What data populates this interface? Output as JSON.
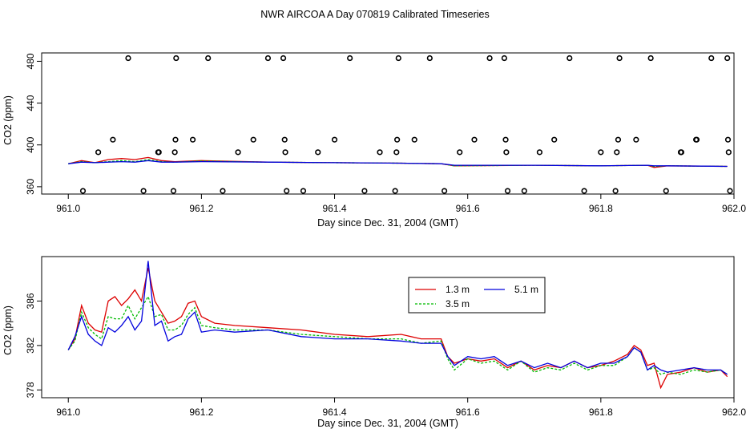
{
  "page": {
    "title": "NWR AIRCOA A  Day 070819  Calibrated Timeseries"
  },
  "colors": {
    "red": "#dd0000",
    "green": "#00bb00",
    "blue": "#0000dd",
    "axis": "#000000",
    "marker": "#000000"
  },
  "chart_data": [
    {
      "type": "scatter",
      "title": "",
      "xlabel": "Day since Dec. 31, 2004 (GMT)",
      "ylabel": "CO2 (ppm)",
      "xlim": [
        960.96,
        962.0
      ],
      "ylim": [
        353,
        488
      ],
      "x_ticks": [
        961.0,
        961.2,
        961.4,
        961.6,
        961.8,
        962.0
      ],
      "x_tick_labels": [
        "961.0",
        "961.2",
        "961.4",
        "961.6",
        "961.8",
        "962.0"
      ],
      "y_ticks": [
        360,
        400,
        440,
        480
      ],
      "y_tick_labels": [
        "360",
        "400",
        "440",
        "480"
      ],
      "markers": [
        {
          "x": 961.022,
          "y": 356
        },
        {
          "x": 961.045,
          "y": 393
        },
        {
          "x": 961.067,
          "y": 405
        },
        {
          "x": 961.09,
          "y": 483
        },
        {
          "x": 961.113,
          "y": 356
        },
        {
          "x": 961.135,
          "y": 393
        },
        {
          "x": 961.136,
          "y": 393
        },
        {
          "x": 961.158,
          "y": 356
        },
        {
          "x": 961.16,
          "y": 393
        },
        {
          "x": 961.161,
          "y": 405
        },
        {
          "x": 961.162,
          "y": 483
        },
        {
          "x": 961.187,
          "y": 405
        },
        {
          "x": 961.21,
          "y": 483
        },
        {
          "x": 961.232,
          "y": 356
        },
        {
          "x": 961.255,
          "y": 393
        },
        {
          "x": 961.278,
          "y": 405
        },
        {
          "x": 961.3,
          "y": 483
        },
        {
          "x": 961.323,
          "y": 483
        },
        {
          "x": 961.325,
          "y": 405
        },
        {
          "x": 961.326,
          "y": 393
        },
        {
          "x": 961.328,
          "y": 356
        },
        {
          "x": 961.353,
          "y": 356
        },
        {
          "x": 961.375,
          "y": 393
        },
        {
          "x": 961.4,
          "y": 405
        },
        {
          "x": 961.423,
          "y": 483
        },
        {
          "x": 961.445,
          "y": 356
        },
        {
          "x": 961.468,
          "y": 393
        },
        {
          "x": 961.491,
          "y": 356
        },
        {
          "x": 961.493,
          "y": 393
        },
        {
          "x": 961.494,
          "y": 405
        },
        {
          "x": 961.496,
          "y": 483
        },
        {
          "x": 961.52,
          "y": 405
        },
        {
          "x": 961.543,
          "y": 483
        },
        {
          "x": 961.565,
          "y": 356
        },
        {
          "x": 961.588,
          "y": 393
        },
        {
          "x": 961.61,
          "y": 405
        },
        {
          "x": 961.633,
          "y": 483
        },
        {
          "x": 961.655,
          "y": 483
        },
        {
          "x": 961.657,
          "y": 405
        },
        {
          "x": 961.658,
          "y": 393
        },
        {
          "x": 961.66,
          "y": 356
        },
        {
          "x": 961.685,
          "y": 356
        },
        {
          "x": 961.708,
          "y": 393
        },
        {
          "x": 961.73,
          "y": 405
        },
        {
          "x": 961.753,
          "y": 483
        },
        {
          "x": 961.775,
          "y": 356
        },
        {
          "x": 961.8,
          "y": 393
        },
        {
          "x": 961.822,
          "y": 356
        },
        {
          "x": 961.824,
          "y": 393
        },
        {
          "x": 961.826,
          "y": 405
        },
        {
          "x": 961.828,
          "y": 483
        },
        {
          "x": 961.853,
          "y": 405
        },
        {
          "x": 961.875,
          "y": 483
        },
        {
          "x": 961.898,
          "y": 356
        },
        {
          "x": 961.92,
          "y": 393
        },
        {
          "x": 961.921,
          "y": 393
        },
        {
          "x": 961.943,
          "y": 405
        },
        {
          "x": 961.944,
          "y": 405
        },
        {
          "x": 961.966,
          "y": 483
        },
        {
          "x": 961.99,
          "y": 483
        },
        {
          "x": 961.991,
          "y": 405
        },
        {
          "x": 961.992,
          "y": 393
        },
        {
          "x": 961.994,
          "y": 356
        }
      ],
      "series": [
        {
          "name": "1.3 m",
          "color": "#dd0000",
          "x": [
            961.0,
            961.02,
            961.04,
            961.06,
            961.08,
            961.1,
            961.12,
            961.14,
            961.16,
            961.2,
            961.3,
            961.4,
            961.5,
            961.56,
            961.58,
            961.7,
            961.8,
            961.87,
            961.88,
            961.9,
            961.99
          ],
          "values": [
            382,
            385,
            383,
            386,
            387,
            386,
            388,
            385,
            384,
            385,
            383.5,
            383,
            382.5,
            382,
            380,
            380.5,
            380,
            380.5,
            378.5,
            380,
            379.5
          ]
        },
        {
          "name": "3.5 m",
          "color": "#00bb00",
          "x": [
            961.0,
            961.02,
            961.04,
            961.06,
            961.08,
            961.1,
            961.12,
            961.14,
            961.16,
            961.2,
            961.3,
            961.4,
            961.5,
            961.56,
            961.58,
            961.7,
            961.8,
            961.87,
            961.88,
            961.9,
            961.99
          ],
          "values": [
            382,
            384,
            383,
            384,
            385,
            384,
            386,
            384,
            383.5,
            384.5,
            383.5,
            383,
            382.5,
            382,
            380,
            380.5,
            380,
            380.5,
            379.5,
            380,
            379.5
          ]
        },
        {
          "name": "5.1 m",
          "color": "#0000dd",
          "x": [
            961.0,
            961.02,
            961.04,
            961.06,
            961.08,
            961.1,
            961.12,
            961.14,
            961.16,
            961.2,
            961.3,
            961.4,
            961.5,
            961.56,
            961.58,
            961.7,
            961.8,
            961.87,
            961.88,
            961.9,
            961.99
          ],
          "values": [
            382,
            383.5,
            383,
            383.5,
            384,
            383.5,
            385,
            383.5,
            383.5,
            384,
            383.5,
            383,
            382.5,
            382,
            380.5,
            380.5,
            380,
            380.5,
            380,
            380,
            379.5
          ]
        }
      ]
    },
    {
      "type": "line",
      "title": "",
      "xlabel": "Day since Dec. 31, 2004 (GMT)",
      "ylabel": "CO2 (ppm)",
      "xlim": [
        960.96,
        962.0
      ],
      "ylim": [
        377.3,
        390.0
      ],
      "x_ticks": [
        961.0,
        961.2,
        961.4,
        961.6,
        961.8,
        962.0
      ],
      "x_tick_labels": [
        "961.0",
        "961.2",
        "961.4",
        "961.6",
        "961.8",
        "962.0"
      ],
      "y_ticks": [
        378,
        382,
        386
      ],
      "y_tick_labels": [
        "378",
        "382",
        "386"
      ],
      "legend": {
        "placement": "top-right",
        "entries": [
          "1.3 m",
          "5.1 m",
          "3.5 m"
        ]
      },
      "series": [
        {
          "name": "1.3 m",
          "color": "#dd0000",
          "x": [
            961.0,
            961.01,
            961.02,
            961.03,
            961.04,
            961.05,
            961.06,
            961.07,
            961.08,
            961.09,
            961.1,
            961.11,
            961.12,
            961.13,
            961.14,
            961.15,
            961.16,
            961.17,
            961.18,
            961.19,
            961.2,
            961.22,
            961.25,
            961.3,
            961.35,
            961.4,
            961.45,
            961.5,
            961.53,
            961.56,
            961.57,
            961.58,
            961.6,
            961.62,
            961.64,
            961.66,
            961.68,
            961.7,
            961.72,
            961.74,
            961.76,
            961.78,
            961.8,
            961.82,
            961.84,
            961.85,
            961.86,
            961.87,
            961.88,
            961.89,
            961.9,
            961.92,
            961.94,
            961.96,
            961.98,
            961.99
          ],
          "values": [
            381.6,
            382.6,
            385.6,
            384.0,
            383.4,
            383.2,
            386.0,
            386.4,
            385.6,
            386.2,
            387.0,
            386.0,
            389.0,
            386.0,
            385.0,
            384.0,
            384.2,
            384.6,
            385.8,
            386.0,
            384.6,
            384.0,
            383.8,
            383.6,
            383.4,
            383.0,
            382.8,
            383.0,
            382.6,
            382.6,
            381.0,
            380.4,
            380.8,
            380.6,
            380.8,
            380.0,
            380.6,
            379.8,
            380.2,
            380.0,
            380.6,
            380.0,
            380.2,
            380.6,
            381.2,
            382.0,
            381.6,
            380.2,
            380.4,
            378.2,
            379.4,
            379.6,
            380.0,
            379.6,
            379.8,
            379.2
          ]
        },
        {
          "name": "3.5 m",
          "color": "#00bb00",
          "x": [
            961.0,
            961.01,
            961.02,
            961.03,
            961.04,
            961.05,
            961.06,
            961.07,
            961.08,
            961.09,
            961.1,
            961.11,
            961.12,
            961.13,
            961.14,
            961.15,
            961.16,
            961.17,
            961.18,
            961.19,
            961.2,
            961.22,
            961.25,
            961.3,
            961.35,
            961.4,
            961.45,
            961.5,
            961.53,
            961.56,
            961.57,
            961.58,
            961.6,
            961.62,
            961.64,
            961.66,
            961.68,
            961.7,
            961.72,
            961.74,
            961.76,
            961.78,
            961.8,
            961.82,
            961.84,
            961.85,
            961.86,
            961.87,
            961.88,
            961.89,
            961.9,
            961.92,
            961.94,
            961.96,
            961.98,
            961.99
          ],
          "values": [
            381.6,
            382.4,
            385.0,
            383.6,
            383.0,
            382.6,
            384.6,
            384.4,
            384.4,
            385.6,
            384.4,
            385.4,
            386.4,
            384.6,
            384.8,
            383.4,
            383.4,
            383.8,
            384.8,
            385.4,
            383.8,
            383.6,
            383.4,
            383.4,
            383.0,
            382.8,
            382.6,
            382.6,
            382.2,
            382.4,
            380.8,
            379.8,
            380.8,
            380.4,
            380.6,
            379.8,
            380.6,
            379.6,
            380.0,
            379.8,
            380.4,
            379.8,
            380.2,
            380.2,
            381.0,
            381.8,
            381.4,
            379.8,
            380.0,
            379.4,
            379.6,
            379.4,
            379.8,
            379.6,
            379.8,
            379.4
          ]
        },
        {
          "name": "5.1 m",
          "color": "#0000dd",
          "x": [
            961.0,
            961.01,
            961.02,
            961.03,
            961.04,
            961.05,
            961.06,
            961.07,
            961.08,
            961.09,
            961.1,
            961.11,
            961.12,
            961.13,
            961.14,
            961.15,
            961.16,
            961.17,
            961.18,
            961.19,
            961.2,
            961.22,
            961.25,
            961.3,
            961.35,
            961.4,
            961.45,
            961.5,
            961.53,
            961.56,
            961.57,
            961.58,
            961.6,
            961.62,
            961.64,
            961.66,
            961.68,
            961.7,
            961.72,
            961.74,
            961.76,
            961.78,
            961.8,
            961.82,
            961.84,
            961.85,
            961.86,
            961.87,
            961.88,
            961.89,
            961.9,
            961.92,
            961.94,
            961.96,
            961.98,
            961.99
          ],
          "values": [
            381.6,
            382.8,
            384.6,
            383.0,
            382.4,
            382.0,
            383.6,
            383.2,
            383.8,
            384.6,
            383.4,
            384.2,
            389.6,
            383.8,
            384.2,
            382.4,
            382.8,
            383.0,
            384.4,
            385.0,
            383.2,
            383.4,
            383.2,
            383.4,
            382.8,
            382.6,
            382.6,
            382.4,
            382.2,
            382.2,
            381.0,
            380.2,
            381.0,
            380.8,
            381.0,
            380.2,
            380.6,
            380.0,
            380.4,
            380.0,
            380.6,
            380.0,
            380.4,
            380.4,
            381.0,
            381.8,
            381.4,
            379.8,
            380.2,
            379.8,
            379.6,
            379.8,
            380.0,
            379.8,
            379.8,
            379.4
          ]
        }
      ]
    }
  ]
}
